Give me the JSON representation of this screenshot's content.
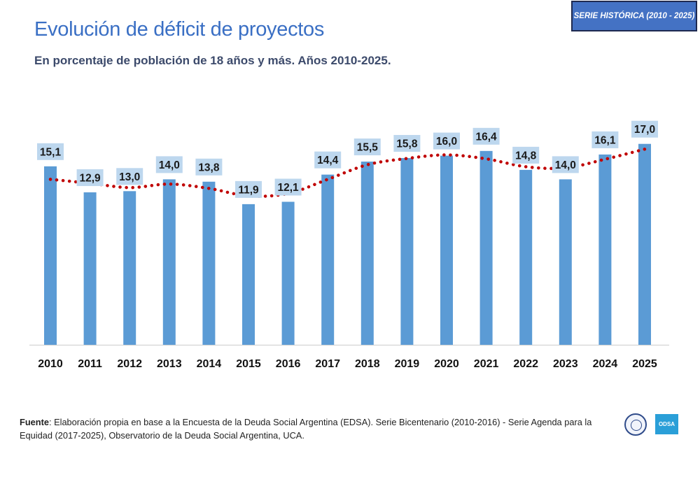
{
  "header": {
    "title": "Evolución de déficit de proyectos",
    "subtitle": "En porcentaje de población de 18 años y más. Años 2010-2025.",
    "badge": "SERIE HISTÓRICA (2010 - 2025)"
  },
  "footer": {
    "source_label": "Fuente",
    "source_text": ": Elaboración propia en base a la Encuesta de la Deuda Social Argentina (EDSA). Serie Bicentenario (2010-2016) - Serie Agenda para la Equidad (2017-2025), Observatorio de la Deuda Social Argentina, UCA.",
    "logo_text": "ODSA"
  },
  "colors": {
    "bar": "#5b9bd5",
    "label_bg": "#bdd7ee",
    "trend": "#c00000",
    "title": "#3a6fc4"
  },
  "chart_data": {
    "type": "bar",
    "title": "Evolución de déficit de proyectos",
    "subtitle": "En porcentaje de población de 18 años y más. Años 2010-2025.",
    "categories": [
      "2010",
      "2011",
      "2012",
      "2013",
      "2014",
      "2015",
      "2016",
      "2017",
      "2018",
      "2019",
      "2020",
      "2021",
      "2022",
      "2023",
      "2024",
      "2025"
    ],
    "values": [
      15.1,
      12.9,
      13.0,
      14.0,
      13.8,
      11.9,
      12.1,
      14.4,
      15.5,
      15.8,
      16.0,
      16.4,
      14.8,
      14.0,
      16.1,
      17.0
    ],
    "value_labels": [
      "15,1",
      "12,9",
      "13,0",
      "14,0",
      "13,8",
      "11,9",
      "12,1",
      "14,4",
      "15,5",
      "15,8",
      "16,0",
      "16,4",
      "14,8",
      "14,0",
      "16,1",
      "17,0"
    ],
    "trendline": {
      "type": "polynomial",
      "style": "dotted"
    },
    "ylim": [
      0,
      20
    ],
    "xlabel": "",
    "ylabel": "",
    "grid": false
  }
}
